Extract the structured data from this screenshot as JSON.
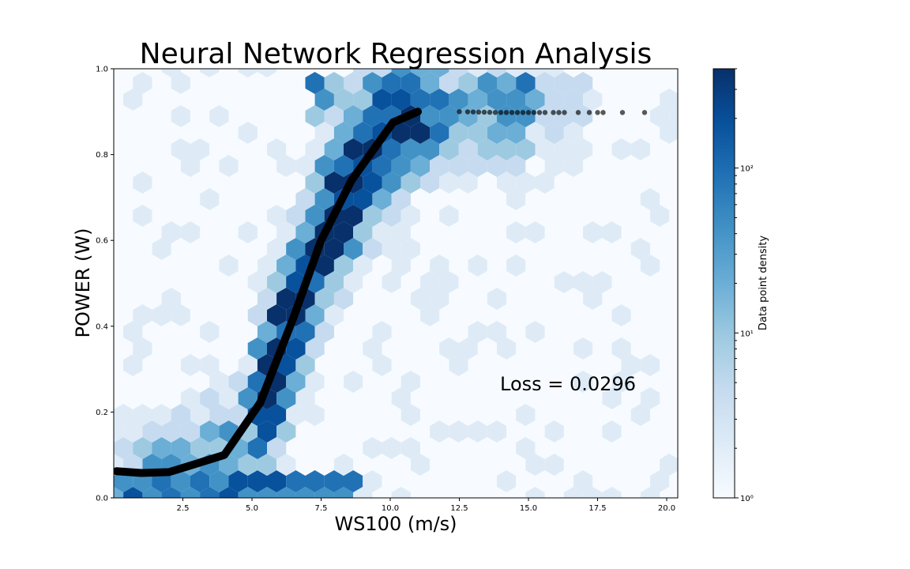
{
  "chart_data": {
    "type": "hexbin-scatter-line",
    "title": "Neural Network Regression Analysis",
    "xlabel": "WS100 (m/s)",
    "ylabel": "POWER (W)",
    "xlim": [
      0.0,
      20.4
    ],
    "ylim": [
      0.0,
      1.0
    ],
    "x_ticks": [
      "2.5",
      "5.0",
      "7.5",
      "10.0",
      "12.5",
      "15.0",
      "17.5",
      "20.0"
    ],
    "x_tick_values": [
      2.5,
      5.0,
      7.5,
      10.0,
      12.5,
      15.0,
      17.5,
      20.0
    ],
    "y_ticks": [
      "0.0",
      "0.2",
      "0.4",
      "0.6",
      "0.8",
      "1.0"
    ],
    "y_tick_values": [
      0.0,
      0.2,
      0.4,
      0.6,
      0.8,
      1.0
    ],
    "grid": false,
    "annotation": "Loss = 0.0296",
    "colorbar": {
      "label": "Data point density",
      "scale": "log",
      "range": [
        1,
        400
      ],
      "colormap": "Blues",
      "ticks": [
        1,
        10,
        100
      ],
      "tick_labels": [
        "10⁰",
        "10¹",
        "10²"
      ],
      "colors": [
        "#f7fbff",
        "#deebf7",
        "#c6dbef",
        "#9ecae1",
        "#6baed6",
        "#4292c6",
        "#2171b5",
        "#08519c",
        "#08306b"
      ]
    },
    "prediction_curve": {
      "x": [
        0.1,
        1.0,
        2.0,
        3.0,
        4.0,
        5.3,
        6.5,
        7.5,
        8.6,
        10.1,
        11.0,
        12.5,
        14.0,
        15.0,
        16.5,
        17.5,
        18.4,
        19.2
      ],
      "y": [
        0.062,
        0.058,
        0.06,
        0.08,
        0.1,
        0.222,
        0.42,
        0.6,
        0.74,
        0.875,
        0.9,
        0.9,
        0.898,
        0.898,
        0.898,
        0.898,
        0.898,
        0.898
      ],
      "color": "#000000"
    }
  }
}
